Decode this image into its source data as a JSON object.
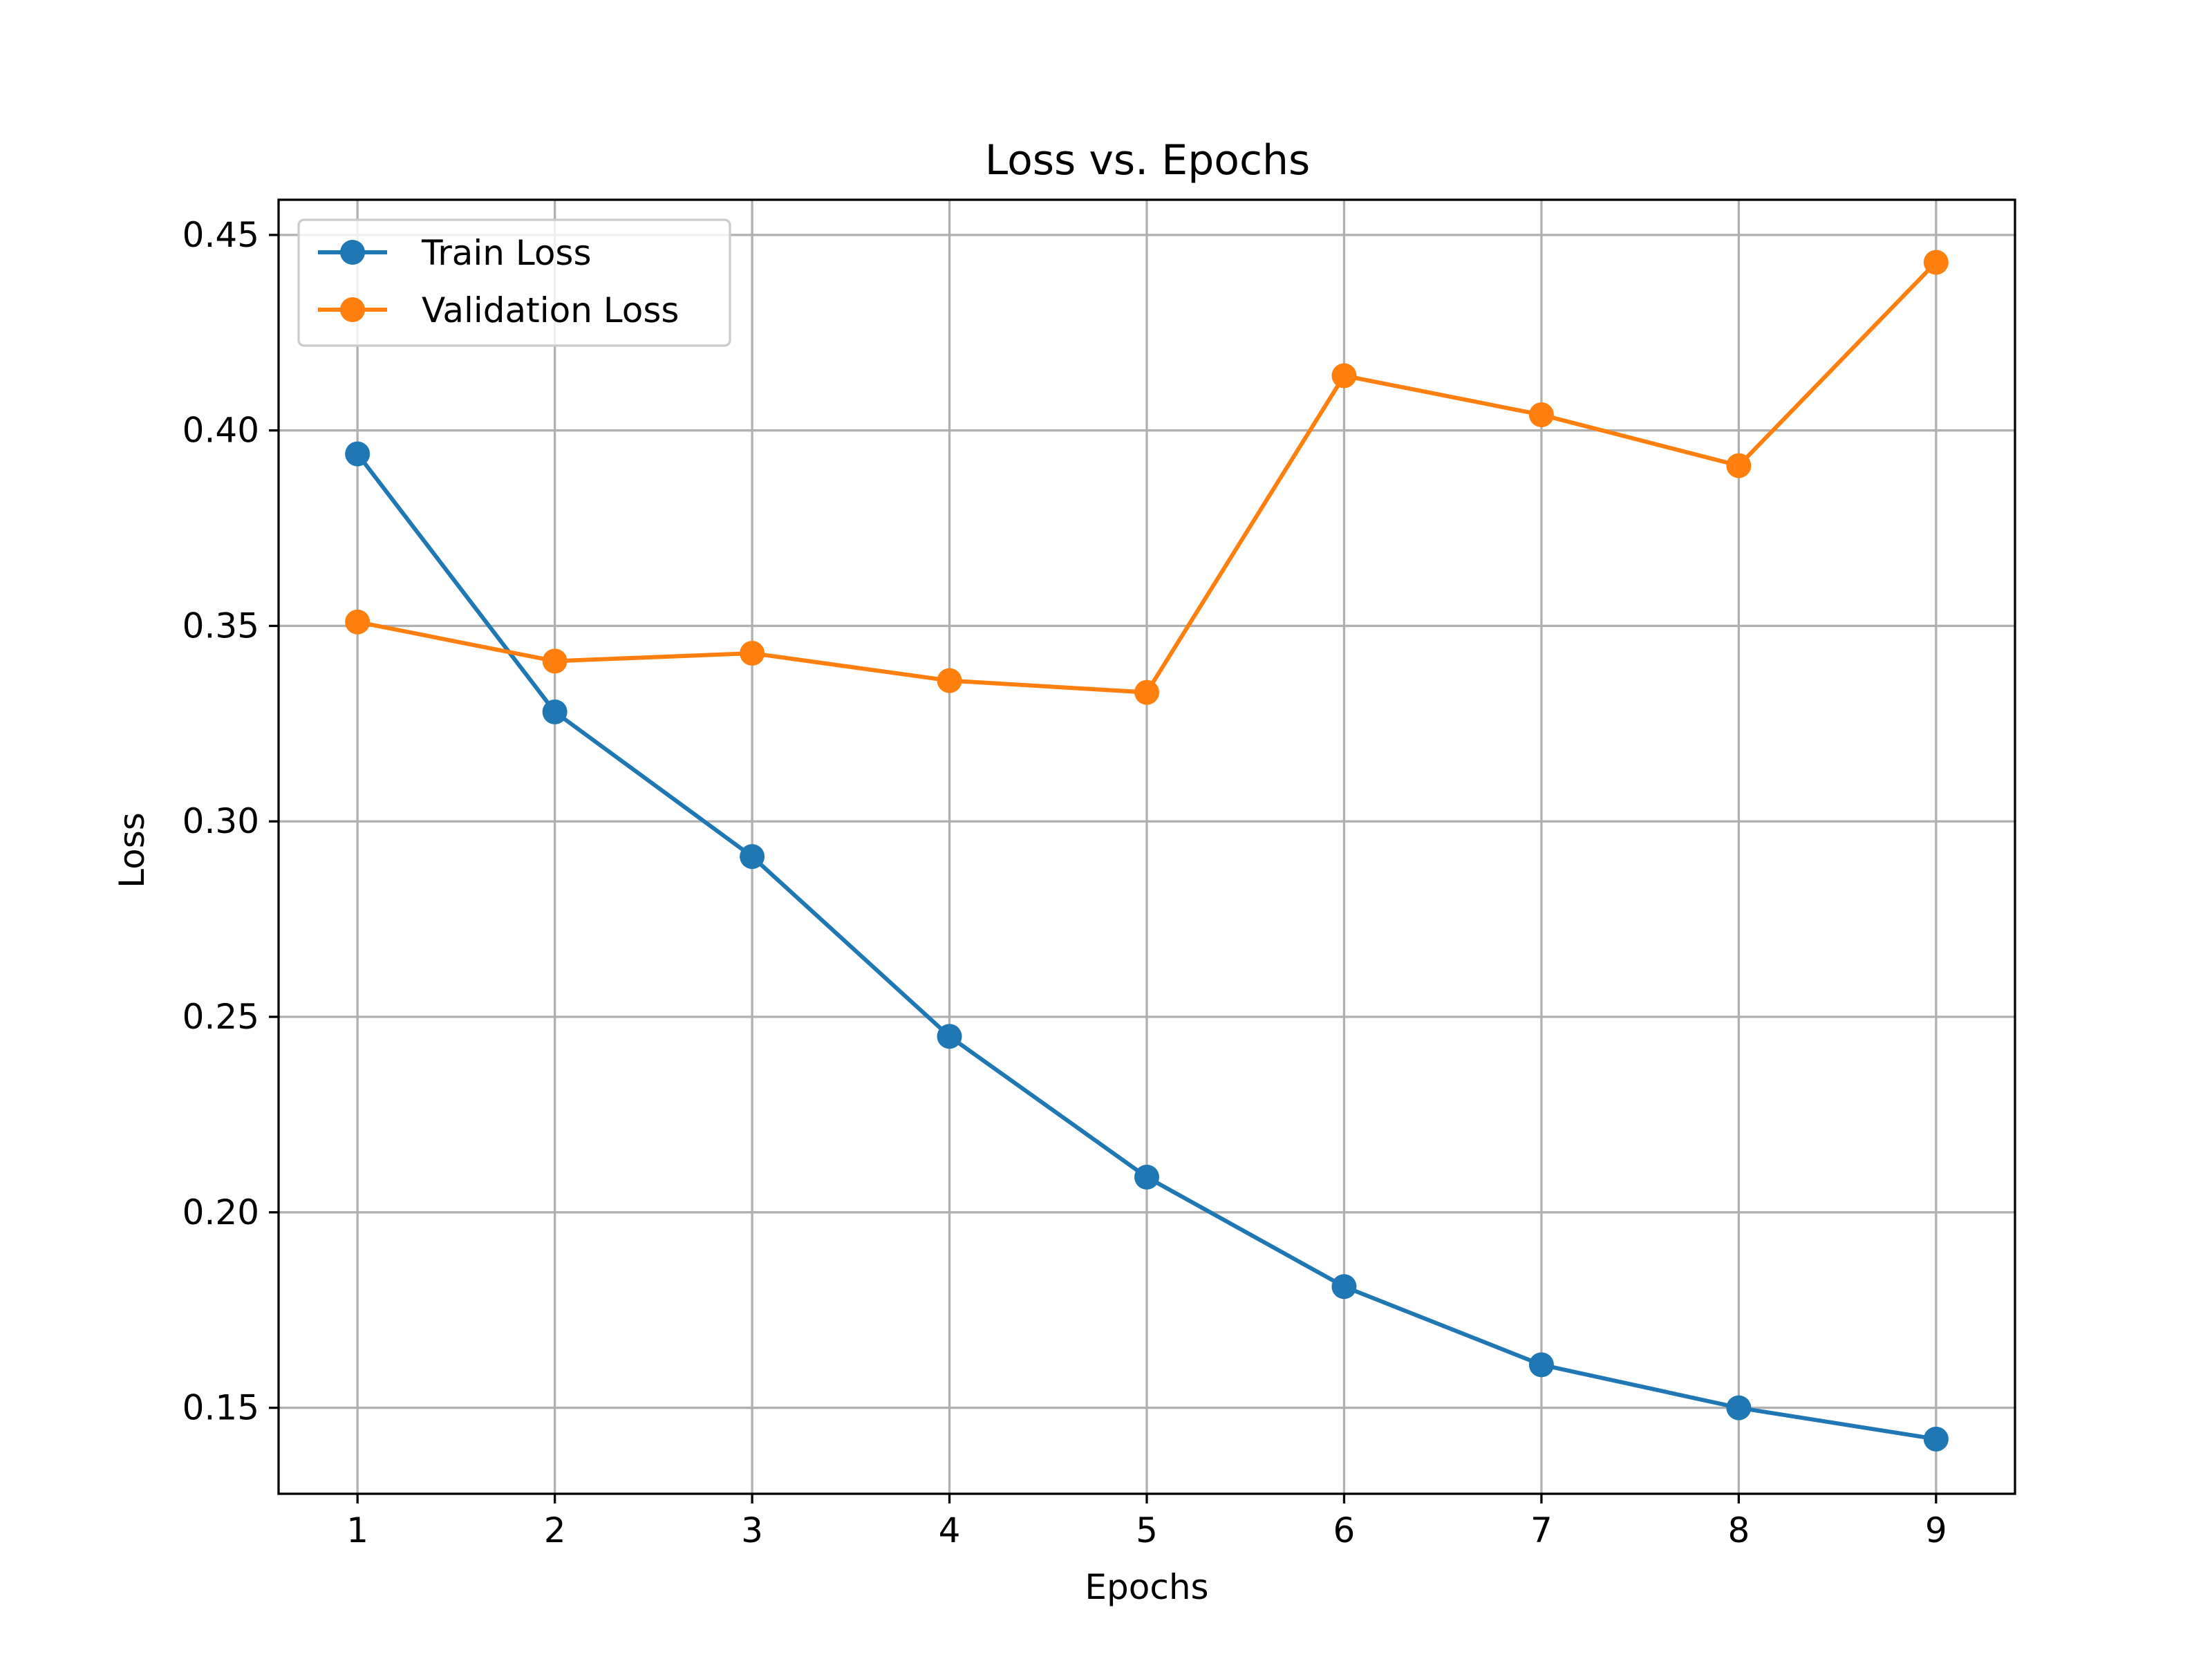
{
  "chart_data": {
    "type": "line",
    "title": "Loss vs. Epochs",
    "xlabel": "Epochs",
    "ylabel": "Loss",
    "x": [
      1,
      2,
      3,
      4,
      5,
      6,
      7,
      8,
      9
    ],
    "x_ticks": [
      "1",
      "2",
      "3",
      "4",
      "5",
      "6",
      "7",
      "8",
      "9"
    ],
    "xlim": [
      0.6,
      9.4
    ],
    "y_ticks": [
      "0.15",
      "0.20",
      "0.25",
      "0.30",
      "0.35",
      "0.40",
      "0.45"
    ],
    "ylim": [
      0.128,
      0.459
    ],
    "grid": true,
    "legend_position": "upper left",
    "series": [
      {
        "name": "Train Loss",
        "color": "#1f77b4",
        "marker": "circle",
        "values": [
          0.394,
          0.328,
          0.291,
          0.245,
          0.209,
          0.181,
          0.161,
          0.15,
          0.142
        ]
      },
      {
        "name": "Validation Loss",
        "color": "#ff7f0e",
        "marker": "circle",
        "values": [
          0.351,
          0.341,
          0.343,
          0.336,
          0.333,
          0.414,
          0.404,
          0.391,
          0.443
        ]
      }
    ]
  }
}
